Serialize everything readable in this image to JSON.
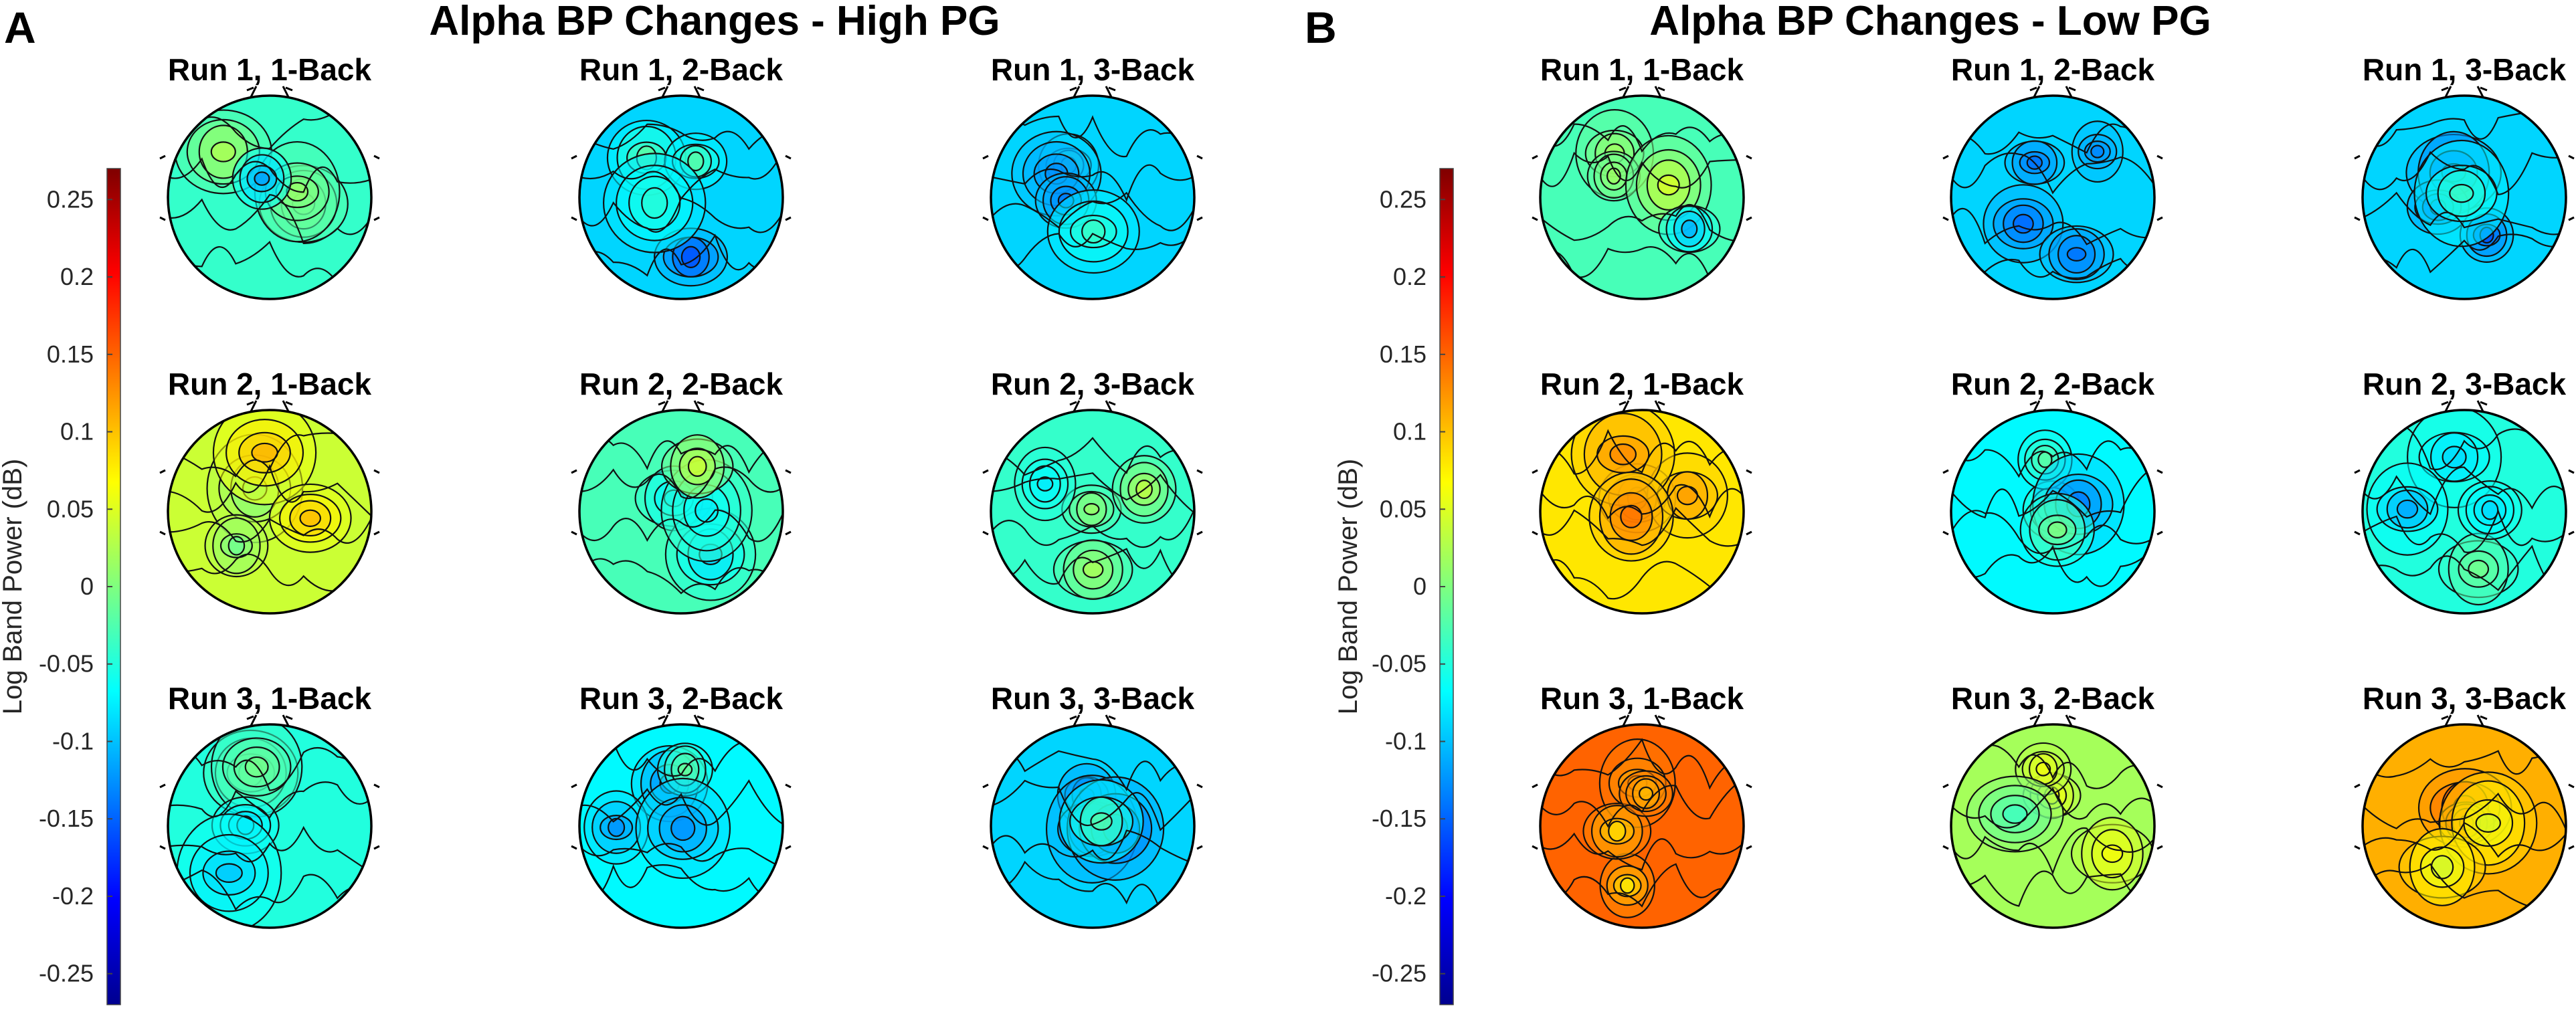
{
  "panels": [
    {
      "letter": "A",
      "title": "Alpha BP Changes - High PG",
      "colorbar": {
        "label": "Log Band Power (dB)",
        "ticks": [
          "0.25",
          "0.2",
          "0.15",
          "0.1",
          "0.05",
          "0",
          "-0.05",
          "-0.1",
          "-0.15",
          "-0.2",
          "-0.25"
        ],
        "min": -0.27,
        "max": 0.27
      },
      "maps": [
        {
          "title": "Run 1, 1-Back",
          "base": -0.04
        },
        {
          "title": "Run 1, 2-Back",
          "base": -0.09
        },
        {
          "title": "Run 1, 3-Back",
          "base": -0.09
        },
        {
          "title": "Run 2, 1-Back",
          "base": 0.04
        },
        {
          "title": "Run 2, 2-Back",
          "base": -0.03
        },
        {
          "title": "Run 2, 3-Back",
          "base": -0.04
        },
        {
          "title": "Run 3, 1-Back",
          "base": -0.05
        },
        {
          "title": "Run 3, 2-Back",
          "base": -0.07
        },
        {
          "title": "Run 3, 3-Back",
          "base": -0.09
        }
      ]
    },
    {
      "letter": "B",
      "title": "Alpha BP Changes - Low PG",
      "colorbar": {
        "label": "Log Band Power (dB)",
        "ticks": [
          "0.25",
          "0.2",
          "0.15",
          "0.1",
          "0.05",
          "0",
          "-0.05",
          "-0.1",
          "-0.15",
          "-0.2",
          "-0.25"
        ],
        "min": -0.27,
        "max": 0.27
      },
      "maps": [
        {
          "title": "Run 1, 1-Back",
          "base": -0.03
        },
        {
          "title": "Run 1, 2-Back",
          "base": -0.09
        },
        {
          "title": "Run 1, 3-Back",
          "base": -0.09
        },
        {
          "title": "Run 2, 1-Back",
          "base": 0.08
        },
        {
          "title": "Run 2, 2-Back",
          "base": -0.07
        },
        {
          "title": "Run 2, 3-Back",
          "base": -0.05
        },
        {
          "title": "Run 3, 1-Back",
          "base": 0.15
        },
        {
          "title": "Run 3, 2-Back",
          "base": 0.02
        },
        {
          "title": "Run 3, 3-Back",
          "base": 0.11
        }
      ]
    }
  ]
}
